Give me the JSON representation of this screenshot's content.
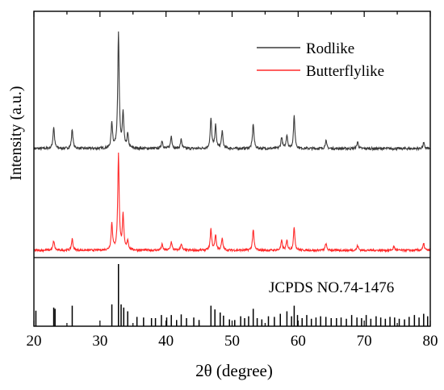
{
  "chart_data": {
    "type": "line",
    "title": "",
    "xlabel": "2θ (degree)",
    "ylabel": "Intensity (a.u.)",
    "xlim": [
      20,
      80
    ],
    "xticks": [
      20,
      30,
      40,
      50,
      60,
      70,
      80
    ],
    "legend_position": "top-right",
    "series": [
      {
        "name": "Rodlike",
        "color": "#3a3a3a",
        "baseline": 0.15,
        "peaks": [
          [
            23.0,
            0.19
          ],
          [
            25.8,
            0.17
          ],
          [
            31.8,
            0.22
          ],
          [
            32.8,
            1.0
          ],
          [
            33.5,
            0.3
          ],
          [
            34.2,
            0.12
          ],
          [
            39.4,
            0.07
          ],
          [
            40.8,
            0.11
          ],
          [
            42.3,
            0.08
          ],
          [
            46.8,
            0.26
          ],
          [
            47.5,
            0.2
          ],
          [
            48.5,
            0.15
          ],
          [
            53.2,
            0.22
          ],
          [
            57.5,
            0.1
          ],
          [
            58.3,
            0.12
          ],
          [
            59.4,
            0.28
          ],
          [
            64.2,
            0.07
          ],
          [
            69.0,
            0.06
          ],
          [
            79.0,
            0.05
          ]
        ]
      },
      {
        "name": "Butterflylike",
        "color": "#ff2a2a",
        "baseline": 0.0,
        "peaks": [
          [
            23.0,
            0.1
          ],
          [
            25.8,
            0.12
          ],
          [
            31.8,
            0.28
          ],
          [
            32.8,
            1.0
          ],
          [
            33.5,
            0.36
          ],
          [
            34.2,
            0.1
          ],
          [
            39.4,
            0.06
          ],
          [
            40.8,
            0.09
          ],
          [
            42.3,
            0.07
          ],
          [
            46.8,
            0.22
          ],
          [
            47.5,
            0.16
          ],
          [
            48.5,
            0.12
          ],
          [
            53.2,
            0.22
          ],
          [
            57.5,
            0.1
          ],
          [
            58.3,
            0.1
          ],
          [
            59.4,
            0.24
          ],
          [
            64.2,
            0.07
          ],
          [
            69.0,
            0.05
          ],
          [
            74.5,
            0.04
          ],
          [
            79.0,
            0.07
          ]
        ]
      }
    ],
    "reference": {
      "label": "JCPDS NO.74-1476",
      "sticks": [
        [
          20.3,
          0.25
        ],
        [
          23.0,
          0.3
        ],
        [
          23.2,
          0.28
        ],
        [
          25.8,
          0.33
        ],
        [
          31.8,
          0.35
        ],
        [
          32.8,
          1.0
        ],
        [
          33.2,
          0.35
        ],
        [
          33.6,
          0.3
        ],
        [
          34.2,
          0.24
        ],
        [
          35.6,
          0.15
        ],
        [
          36.6,
          0.14
        ],
        [
          37.8,
          0.13
        ],
        [
          38.4,
          0.13
        ],
        [
          39.3,
          0.18
        ],
        [
          40.1,
          0.14
        ],
        [
          40.8,
          0.18
        ],
        [
          41.6,
          0.1
        ],
        [
          42.3,
          0.19
        ],
        [
          43.1,
          0.13
        ],
        [
          44.2,
          0.14
        ],
        [
          45.0,
          0.1
        ],
        [
          46.8,
          0.33
        ],
        [
          47.4,
          0.27
        ],
        [
          48.2,
          0.22
        ],
        [
          48.7,
          0.17
        ],
        [
          49.6,
          0.11
        ],
        [
          50.4,
          0.1
        ],
        [
          51.3,
          0.16
        ],
        [
          51.9,
          0.13
        ],
        [
          52.5,
          0.16
        ],
        [
          53.2,
          0.28
        ],
        [
          53.8,
          0.13
        ],
        [
          54.5,
          0.11
        ],
        [
          55.5,
          0.16
        ],
        [
          56.4,
          0.15
        ],
        [
          57.3,
          0.2
        ],
        [
          58.3,
          0.24
        ],
        [
          59.0,
          0.16
        ],
        [
          59.4,
          0.33
        ],
        [
          59.9,
          0.18
        ],
        [
          60.6,
          0.13
        ],
        [
          61.3,
          0.18
        ],
        [
          62.0,
          0.12
        ],
        [
          62.7,
          0.14
        ],
        [
          63.4,
          0.16
        ],
        [
          64.2,
          0.15
        ],
        [
          65.0,
          0.13
        ],
        [
          65.8,
          0.13
        ],
        [
          66.5,
          0.14
        ],
        [
          67.3,
          0.12
        ],
        [
          68.1,
          0.18
        ],
        [
          68.9,
          0.14
        ],
        [
          69.6,
          0.13
        ],
        [
          70.3,
          0.18
        ],
        [
          71.0,
          0.12
        ],
        [
          71.8,
          0.16
        ],
        [
          72.5,
          0.14
        ],
        [
          73.2,
          0.12
        ],
        [
          73.9,
          0.15
        ],
        [
          74.6,
          0.14
        ],
        [
          75.3,
          0.12
        ],
        [
          76.1,
          0.11
        ],
        [
          76.8,
          0.15
        ],
        [
          77.6,
          0.18
        ],
        [
          78.3,
          0.14
        ],
        [
          79.0,
          0.2
        ],
        [
          79.6,
          0.16
        ]
      ]
    }
  }
}
